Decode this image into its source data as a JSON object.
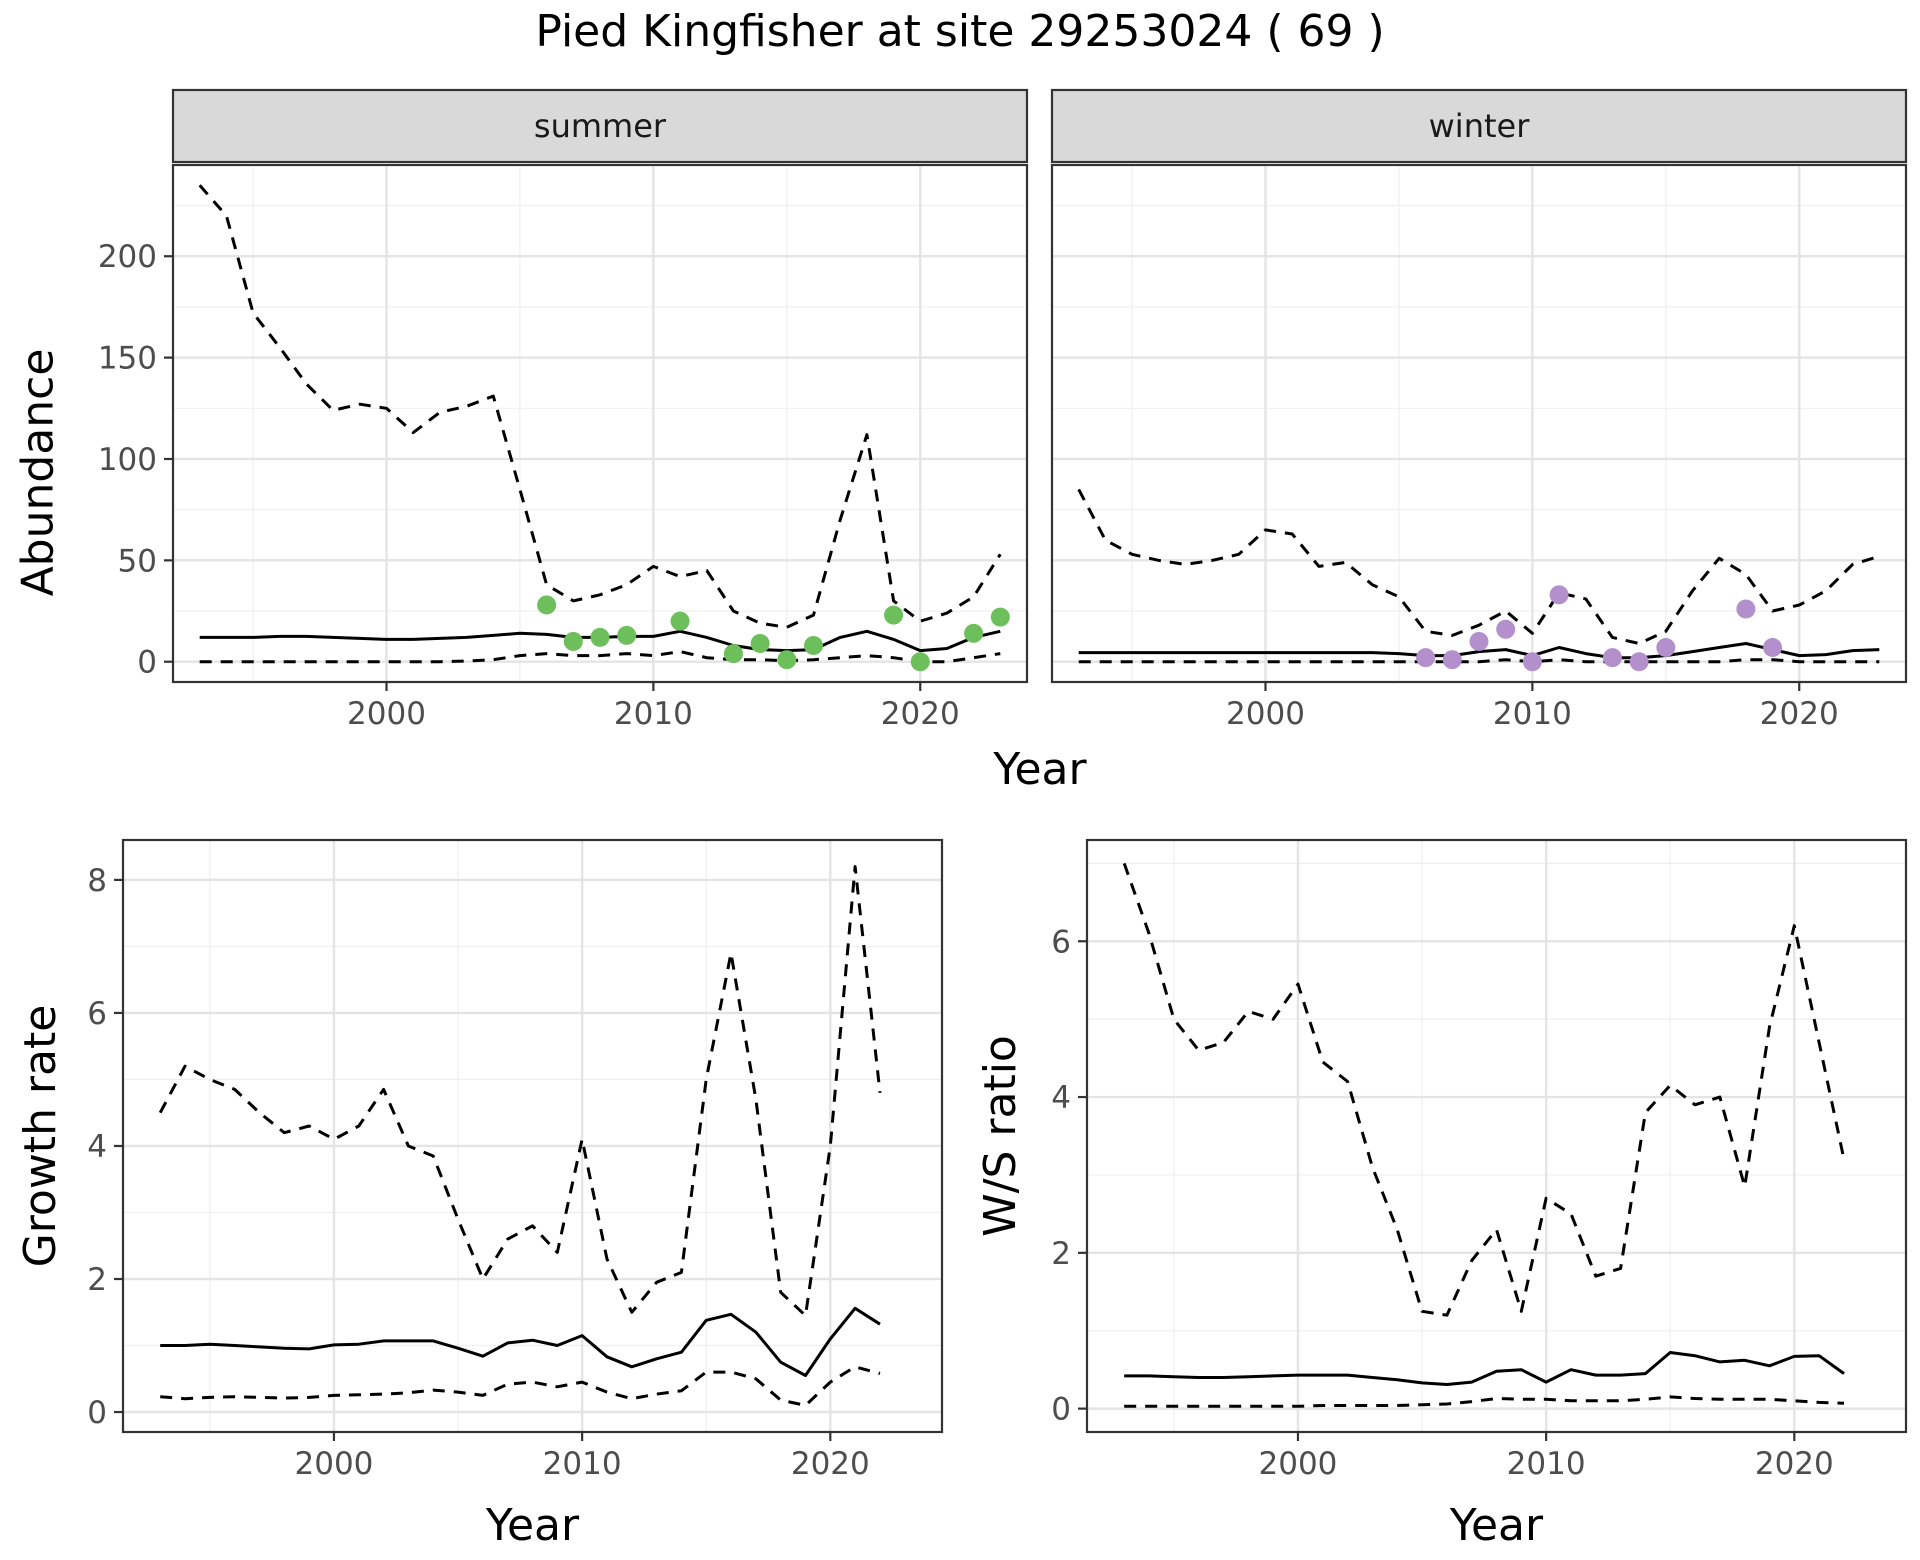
{
  "figure": {
    "title": "Pied Kingfisher at site 29253024 ( 69 )"
  },
  "chart_data": [
    {
      "type": "line",
      "facet": "summer",
      "xlabel": "Year",
      "ylabel": "Abundance",
      "xlim": [
        1992,
        2024
      ],
      "ylim": [
        -10,
        245
      ],
      "xticks": [
        2000,
        2010,
        2020
      ],
      "yticks": [
        0,
        50,
        100,
        150,
        200
      ],
      "grid": true,
      "series": [
        {
          "role": "mean",
          "style": "solid",
          "x": [
            1993,
            1994,
            1995,
            1996,
            1997,
            1998,
            1999,
            2000,
            2001,
            2002,
            2003,
            2004,
            2005,
            2006,
            2007,
            2008,
            2009,
            2010,
            2011,
            2012,
            2013,
            2014,
            2015,
            2016,
            2017,
            2018,
            2019,
            2020,
            2021,
            2022,
            2023
          ],
          "y": [
            12,
            12,
            12,
            12.5,
            12.5,
            12,
            11.5,
            11,
            11,
            11.5,
            12,
            13,
            14,
            13.5,
            12,
            12,
            12.5,
            12.5,
            15,
            12,
            8,
            6,
            5.5,
            6,
            12,
            15,
            11,
            5.5,
            6.5,
            12,
            15
          ]
        },
        {
          "role": "upper",
          "style": "dashed",
          "x": [
            1993,
            1994,
            1995,
            1996,
            1997,
            1998,
            1999,
            2000,
            2001,
            2002,
            2003,
            2004,
            2005,
            2006,
            2007,
            2008,
            2009,
            2010,
            2011,
            2012,
            2013,
            2014,
            2015,
            2016,
            2017,
            2018,
            2019,
            2020,
            2021,
            2022,
            2023
          ],
          "y": [
            235,
            220,
            172,
            155,
            137,
            124,
            127,
            125,
            113,
            123,
            126,
            131,
            85,
            38,
            30,
            33,
            38,
            47,
            42,
            45,
            25,
            19,
            17,
            23,
            70,
            112,
            30,
            20,
            24,
            32,
            53
          ]
        },
        {
          "role": "lower",
          "style": "dashed",
          "x": [
            1993,
            1994,
            1995,
            1996,
            1997,
            1998,
            1999,
            2000,
            2001,
            2002,
            2003,
            2004,
            2005,
            2006,
            2007,
            2008,
            2009,
            2010,
            2011,
            2012,
            2013,
            2014,
            2015,
            2016,
            2017,
            2018,
            2019,
            2020,
            2021,
            2022,
            2023
          ],
          "y": [
            0,
            0,
            0,
            0,
            0,
            0,
            0,
            0,
            0,
            0,
            0.3,
            1,
            3,
            4,
            3,
            3,
            4,
            3,
            5,
            2,
            1,
            1,
            0.5,
            1,
            2,
            3,
            2,
            0,
            0,
            2,
            4
          ]
        }
      ],
      "points": {
        "color": "#6cbf5b",
        "x": [
          2006,
          2007,
          2008,
          2009,
          2011,
          2013,
          2014,
          2015,
          2016,
          2019,
          2020,
          2022,
          2023
        ],
        "y": [
          28,
          10,
          12,
          13,
          20,
          4,
          9,
          1,
          8,
          23,
          0,
          14,
          22
        ]
      }
    },
    {
      "type": "line",
      "facet": "winter",
      "xlabel": "Year",
      "ylabel": "Abundance",
      "xlim": [
        1992,
        2024
      ],
      "ylim": [
        -10,
        245
      ],
      "xticks": [
        2000,
        2010,
        2020
      ],
      "yticks": [
        0,
        50,
        100,
        150,
        200
      ],
      "grid": true,
      "series": [
        {
          "role": "mean",
          "style": "solid",
          "x": [
            1993,
            1994,
            1995,
            1996,
            1997,
            1998,
            1999,
            2000,
            2001,
            2002,
            2003,
            2004,
            2005,
            2006,
            2007,
            2008,
            2009,
            2010,
            2011,
            2012,
            2013,
            2014,
            2015,
            2016,
            2017,
            2018,
            2019,
            2020,
            2021,
            2022,
            2023
          ],
          "y": [
            4.5,
            4.5,
            4.5,
            4.5,
            4.5,
            4.5,
            4.5,
            4.5,
            4.5,
            4.5,
            4.5,
            4.5,
            4,
            3,
            3,
            5,
            6,
            3,
            7,
            4,
            2,
            2,
            3,
            5,
            7,
            9,
            6,
            3,
            3.5,
            5.5,
            6
          ]
        },
        {
          "role": "upper",
          "style": "dashed",
          "x": [
            1993,
            1994,
            1995,
            1996,
            1997,
            1998,
            1999,
            2000,
            2001,
            2002,
            2003,
            2004,
            2005,
            2006,
            2007,
            2008,
            2009,
            2010,
            2011,
            2012,
            2013,
            2014,
            2015,
            2016,
            2017,
            2018,
            2019,
            2020,
            2021,
            2022,
            2023
          ],
          "y": [
            85,
            60,
            53,
            50,
            48,
            50,
            53,
            65,
            63,
            47,
            49,
            38,
            32,
            15,
            13,
            18,
            25,
            14,
            34,
            31,
            12,
            9,
            15,
            35,
            51,
            43,
            25,
            28,
            35,
            48,
            52
          ]
        },
        {
          "role": "lower",
          "style": "dashed",
          "x": [
            1993,
            1994,
            1995,
            1996,
            1997,
            1998,
            1999,
            2000,
            2001,
            2002,
            2003,
            2004,
            2005,
            2006,
            2007,
            2008,
            2009,
            2010,
            2011,
            2012,
            2013,
            2014,
            2015,
            2016,
            2017,
            2018,
            2019,
            2020,
            2021,
            2022,
            2023
          ],
          "y": [
            0,
            0,
            0,
            0,
            0,
            0,
            0,
            0,
            0,
            0,
            0,
            0,
            0,
            0,
            0,
            0,
            1,
            0,
            1,
            0,
            0,
            0,
            0,
            0,
            0,
            1,
            1,
            0,
            0,
            0,
            0
          ]
        }
      ],
      "points": {
        "color": "#b38fcc",
        "x": [
          2006,
          2007,
          2008,
          2009,
          2010,
          2011,
          2013,
          2014,
          2015,
          2018,
          2019
        ],
        "y": [
          2,
          1,
          10,
          16,
          0,
          33,
          2,
          0,
          7,
          26,
          7
        ]
      }
    },
    {
      "type": "line",
      "facet": "",
      "xlabel": "Year",
      "ylabel": "Growth rate",
      "xlim": [
        1991.5,
        2024.5
      ],
      "ylim": [
        -0.3,
        8.6
      ],
      "xticks": [
        2000,
        2010,
        2020
      ],
      "yticks": [
        0,
        2,
        4,
        6,
        8
      ],
      "grid": true,
      "series": [
        {
          "role": "mean",
          "style": "solid",
          "x": [
            1993,
            1994,
            1995,
            1996,
            1997,
            1998,
            1999,
            2000,
            2001,
            2002,
            2003,
            2004,
            2005,
            2006,
            2007,
            2008,
            2009,
            2010,
            2011,
            2012,
            2013,
            2014,
            2015,
            2016,
            2017,
            2018,
            2019,
            2020,
            2021,
            2022
          ],
          "y": [
            1.0,
            1.0,
            1.02,
            1.0,
            0.98,
            0.96,
            0.95,
            1.01,
            1.02,
            1.07,
            1.07,
            1.07,
            0.96,
            0.84,
            1.04,
            1.08,
            1.0,
            1.15,
            0.83,
            0.68,
            0.8,
            0.9,
            1.38,
            1.47,
            1.2,
            0.75,
            0.55,
            1.1,
            1.56,
            1.32
          ]
        },
        {
          "role": "upper",
          "style": "dashed",
          "x": [
            1993,
            1994,
            1995,
            1996,
            1997,
            1998,
            1999,
            2000,
            2001,
            2002,
            2003,
            2004,
            2005,
            2006,
            2007,
            2008,
            2009,
            2010,
            2011,
            2012,
            2013,
            2014,
            2015,
            2016,
            2017,
            2018,
            2019,
            2020,
            2021,
            2022
          ],
          "y": [
            4.5,
            5.2,
            5.0,
            4.85,
            4.5,
            4.2,
            4.3,
            4.1,
            4.3,
            4.85,
            4.0,
            3.85,
            2.9,
            2.0,
            2.6,
            2.8,
            2.4,
            4.1,
            2.3,
            1.5,
            1.95,
            2.1,
            5.0,
            6.9,
            4.7,
            1.8,
            1.45,
            4.0,
            8.2,
            4.8
          ]
        },
        {
          "role": "lower",
          "style": "dashed",
          "x": [
            1993,
            1994,
            1995,
            1996,
            1997,
            1998,
            1999,
            2000,
            2001,
            2002,
            2003,
            2004,
            2005,
            2006,
            2007,
            2008,
            2009,
            2010,
            2011,
            2012,
            2013,
            2014,
            2015,
            2016,
            2017,
            2018,
            2019,
            2020,
            2021,
            2022
          ],
          "y": [
            0.23,
            0.2,
            0.22,
            0.23,
            0.22,
            0.21,
            0.22,
            0.25,
            0.26,
            0.27,
            0.29,
            0.33,
            0.3,
            0.25,
            0.42,
            0.45,
            0.38,
            0.45,
            0.3,
            0.2,
            0.27,
            0.32,
            0.6,
            0.6,
            0.5,
            0.18,
            0.1,
            0.45,
            0.68,
            0.58
          ]
        }
      ]
    },
    {
      "type": "line",
      "facet": "",
      "xlabel": "Year",
      "ylabel": "W/S ratio",
      "xlim": [
        1991.5,
        2024.5
      ],
      "ylim": [
        -0.3,
        7.3
      ],
      "xticks": [
        2000,
        2010,
        2020
      ],
      "yticks": [
        0,
        2,
        4,
        6
      ],
      "grid": true,
      "series": [
        {
          "role": "mean",
          "style": "solid",
          "x": [
            1993,
            1994,
            1995,
            1996,
            1997,
            1998,
            1999,
            2000,
            2001,
            2002,
            2003,
            2004,
            2005,
            2006,
            2007,
            2008,
            2009,
            2010,
            2011,
            2012,
            2013,
            2014,
            2015,
            2016,
            2017,
            2018,
            2019,
            2020,
            2021,
            2022
          ],
          "y": [
            0.42,
            0.42,
            0.41,
            0.4,
            0.4,
            0.41,
            0.42,
            0.43,
            0.43,
            0.43,
            0.4,
            0.37,
            0.33,
            0.31,
            0.34,
            0.48,
            0.5,
            0.34,
            0.5,
            0.43,
            0.43,
            0.45,
            0.72,
            0.68,
            0.6,
            0.62,
            0.55,
            0.67,
            0.68,
            0.45
          ]
        },
        {
          "role": "upper",
          "style": "dashed",
          "x": [
            1993,
            1994,
            1995,
            1996,
            1997,
            1998,
            1999,
            2000,
            2001,
            2002,
            2003,
            2004,
            2005,
            2006,
            2007,
            2008,
            2009,
            2010,
            2011,
            2012,
            2013,
            2014,
            2015,
            2016,
            2017,
            2018,
            2019,
            2020,
            2021,
            2022
          ],
          "y": [
            7.0,
            6.1,
            5.0,
            4.6,
            4.7,
            5.1,
            5.0,
            5.45,
            4.45,
            4.2,
            3.1,
            2.3,
            1.25,
            1.2,
            1.9,
            2.3,
            1.25,
            2.7,
            2.5,
            1.7,
            1.8,
            3.8,
            4.15,
            3.9,
            4.0,
            2.85,
            4.9,
            6.2,
            4.7,
            3.2
          ]
        },
        {
          "role": "lower",
          "style": "dashed",
          "x": [
            1993,
            1994,
            1995,
            1996,
            1997,
            1998,
            1999,
            2000,
            2001,
            2002,
            2003,
            2004,
            2005,
            2006,
            2007,
            2008,
            2009,
            2010,
            2011,
            2012,
            2013,
            2014,
            2015,
            2016,
            2017,
            2018,
            2019,
            2020,
            2021,
            2022
          ],
          "y": [
            0.03,
            0.03,
            0.03,
            0.03,
            0.03,
            0.03,
            0.03,
            0.03,
            0.04,
            0.04,
            0.04,
            0.04,
            0.05,
            0.06,
            0.09,
            0.13,
            0.12,
            0.12,
            0.1,
            0.1,
            0.1,
            0.12,
            0.15,
            0.13,
            0.12,
            0.12,
            0.12,
            0.1,
            0.08,
            0.07
          ]
        }
      ]
    }
  ]
}
